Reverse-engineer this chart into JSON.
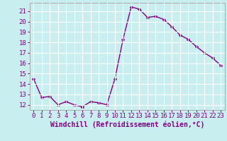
{
  "x": [
    0,
    1,
    2,
    3,
    4,
    5,
    6,
    7,
    8,
    9,
    10,
    11,
    12,
    13,
    14,
    15,
    16,
    17,
    18,
    19,
    20,
    21,
    22,
    23
  ],
  "y": [
    14.5,
    12.7,
    12.8,
    12.0,
    12.3,
    12.0,
    11.8,
    12.3,
    12.2,
    12.0,
    14.5,
    18.3,
    21.4,
    21.2,
    20.4,
    20.5,
    20.2,
    19.5,
    18.7,
    18.3,
    17.6,
    17.0,
    16.5,
    15.8
  ],
  "line_color": "#800080",
  "marker": "D",
  "marker_size": 2.2,
  "linewidth": 1.0,
  "background_color": "#c8eef0",
  "grid_color": "#ffffff",
  "xlabel": "Windchill (Refroidissement éolien,°C)",
  "xlabel_fontsize": 7,
  "tick_fontsize": 6.5,
  "ylim": [
    11.5,
    21.8
  ],
  "xlim": [
    -0.5,
    23.5
  ],
  "yticks": [
    12,
    13,
    14,
    15,
    16,
    17,
    18,
    19,
    20,
    21
  ],
  "xticks": [
    0,
    1,
    2,
    3,
    4,
    5,
    6,
    7,
    8,
    9,
    10,
    11,
    12,
    13,
    14,
    15,
    16,
    17,
    18,
    19,
    20,
    21,
    22,
    23
  ],
  "spine_color": "#aaaaaa",
  "tick_color": "#800080",
  "label_color": "#800080"
}
